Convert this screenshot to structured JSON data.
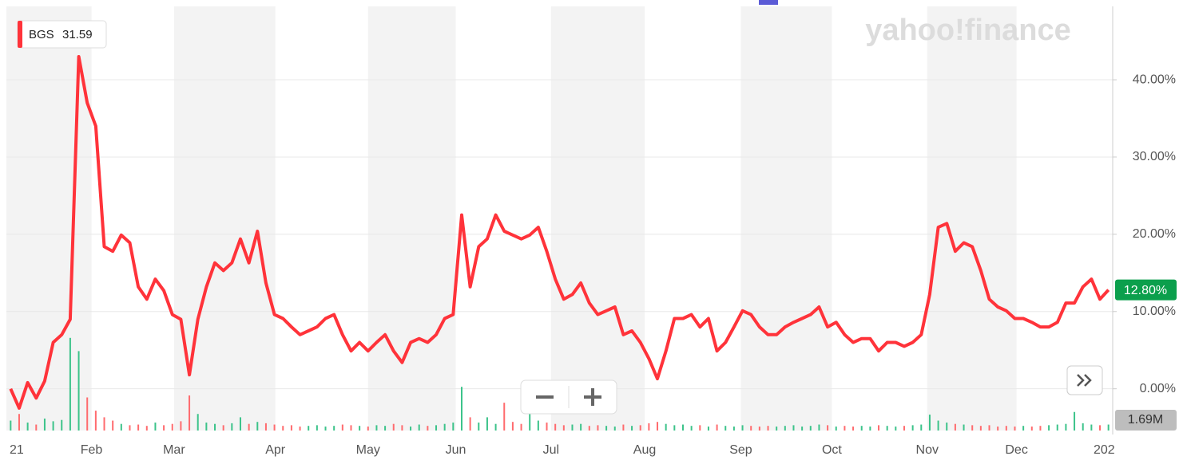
{
  "chart_data": {
    "type": "line",
    "logo": "yahoo!finance",
    "symbol": "BGS",
    "price": 31.59,
    "xlim": [
      0,
      130
    ],
    "ylim": [
      -5.4,
      49.5
    ],
    "xticks": [
      {
        "value": 0,
        "label": "21"
      },
      {
        "value": 10,
        "label": "Feb"
      },
      {
        "value": 19.7,
        "label": "Mar"
      },
      {
        "value": 31.6,
        "label": "Apr"
      },
      {
        "value": 42.5,
        "label": "May"
      },
      {
        "value": 52.8,
        "label": "Jun"
      },
      {
        "value": 64,
        "label": "Jul"
      },
      {
        "value": 75,
        "label": "Aug"
      },
      {
        "value": 86.3,
        "label": "Sep"
      },
      {
        "value": 97,
        "label": "Oct"
      },
      {
        "value": 108.2,
        "label": "Nov"
      },
      {
        "value": 118.7,
        "label": "Dec"
      },
      {
        "value": 129,
        "label": "202"
      }
    ],
    "yticks": [
      {
        "value": 0,
        "label": "0.00%"
      },
      {
        "value": 10,
        "label": "10.00%"
      },
      {
        "value": 20,
        "label": "20.00%"
      },
      {
        "value": 30,
        "label": "30.00%"
      },
      {
        "value": 40,
        "label": "40.00%"
      }
    ],
    "grid": true,
    "series": [
      {
        "name": "BGS",
        "color": "#ff333a",
        "values": [
          0,
          -2.5,
          0.8,
          -1.2,
          1,
          6,
          7,
          9,
          43,
          37,
          34,
          18.4,
          17.8,
          19.9,
          18.9,
          13.2,
          11.6,
          14.2,
          12.7,
          9.6,
          9,
          1.8,
          9,
          13.2,
          16.3,
          15.3,
          16.3,
          19.4,
          16.3,
          20.4,
          13.7,
          9.6,
          9.1,
          8,
          7,
          7.5,
          8,
          9.1,
          9.6,
          7,
          4.9,
          6,
          4.9,
          6,
          7,
          4.9,
          3.4,
          6,
          6.5,
          6,
          7,
          9.1,
          9.6,
          22.5,
          13.2,
          18.4,
          19.4,
          22.5,
          20.4,
          19.9,
          19.4,
          19.9,
          20.9,
          17.8,
          14.2,
          11.6,
          12.2,
          13.7,
          11.1,
          9.6,
          10.1,
          10.6,
          7,
          7.5,
          6,
          3.9,
          1.3,
          4.9,
          9.1,
          9.1,
          9.6,
          8,
          9.1,
          4.9,
          6,
          8,
          10.1,
          9.6,
          8,
          7,
          7,
          8,
          8.6,
          9.1,
          9.6,
          10.6,
          8,
          8.6,
          7,
          6,
          6.5,
          6.5,
          4.9,
          6,
          6,
          5.5,
          6,
          7,
          12.2,
          20.9,
          21.4,
          17.8,
          18.9,
          18.4,
          15.3,
          11.6,
          10.6,
          10.1,
          9.1,
          9.1,
          8.6,
          8,
          8,
          8.6,
          11.1,
          11.1,
          13.2,
          14.2,
          11.6,
          12.8
        ]
      }
    ],
    "current": {
      "value": 12.8,
      "label": "12.80%"
    },
    "volume": {
      "label": "1.69M",
      "value": 1.69,
      "values": [
        1.5,
        2.5,
        1.2,
        0.9,
        1.8,
        1.4,
        1.6,
        14,
        12,
        5,
        3,
        2,
        1.5,
        1,
        0.8,
        0.9,
        0.7,
        1.2,
        0.8,
        1,
        1.4,
        5.3,
        2.5,
        1.2,
        1,
        0.8,
        1.1,
        2,
        1,
        1.3,
        1.1,
        0.9,
        0.7,
        0.8,
        0.6,
        0.7,
        0.8,
        0.6,
        0.7,
        0.9,
        0.8,
        0.7,
        0.6,
        0.8,
        0.7,
        1,
        0.8,
        0.6,
        0.9,
        0.7,
        0.8,
        1,
        1.2,
        6.6,
        2,
        1.2,
        2,
        1,
        4.2,
        1.3,
        1,
        6,
        1.5,
        1.2,
        1,
        0.8,
        0.9,
        1,
        0.7,
        0.8,
        0.7,
        0.6,
        0.9,
        0.7,
        0.8,
        1.1,
        1.3,
        1,
        0.8,
        0.9,
        0.7,
        0.8,
        0.6,
        0.9,
        0.7,
        0.6,
        0.8,
        0.7,
        0.6,
        0.7,
        0.6,
        0.7,
        0.8,
        0.6,
        0.7,
        0.9,
        0.8,
        0.6,
        0.7,
        0.6,
        0.7,
        0.6,
        0.8,
        0.7,
        0.6,
        0.7,
        0.8,
        0.9,
        2.4,
        1.5,
        1.2,
        1,
        0.9,
        0.8,
        0.7,
        0.8,
        0.6,
        0.7,
        0.6,
        0.7,
        0.6,
        0.7,
        0.8,
        0.9,
        1,
        2.8,
        1.1,
        0.9,
        0.8,
        0.9
      ]
    }
  }
}
